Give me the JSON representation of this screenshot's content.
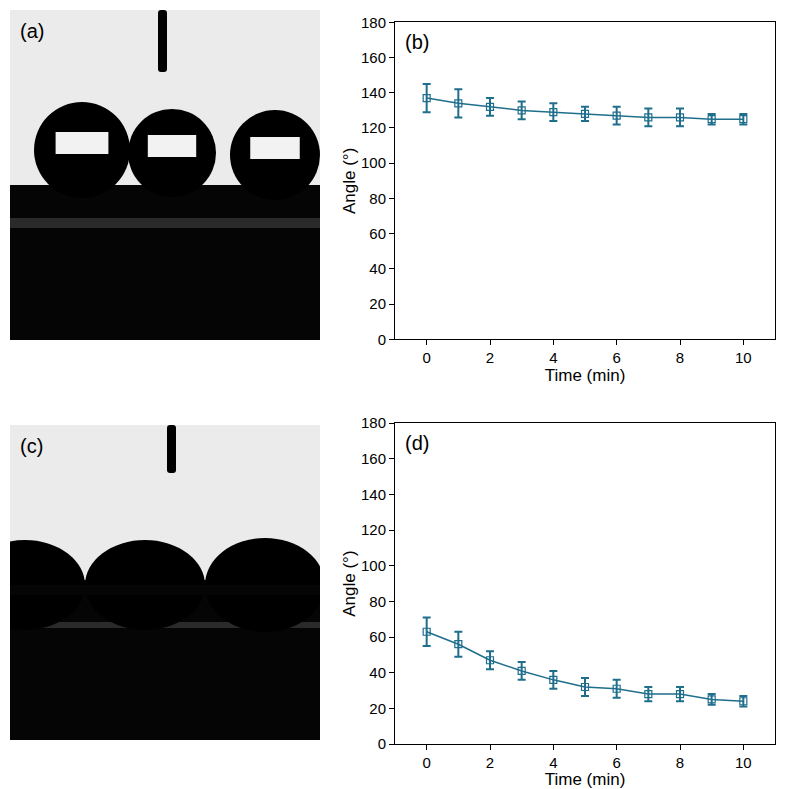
{
  "chart_data": [
    {
      "type": "line",
      "annotations": [
        "(b)"
      ],
      "x": [
        0,
        1,
        2,
        3,
        4,
        5,
        6,
        7,
        8,
        9,
        10
      ],
      "values": [
        137,
        134,
        132,
        130,
        129,
        128,
        127,
        126,
        126,
        125,
        125
      ],
      "errors": [
        8,
        8,
        5,
        5,
        5,
        4,
        5,
        5,
        5,
        3,
        3
      ],
      "color": "#1f6e8c",
      "marker": "square-open",
      "line_style": "solid",
      "x_label": "Time (min)",
      "y_label": "Angle (°)",
      "xlim": [
        -1,
        11
      ],
      "xticks": [
        0,
        2,
        4,
        6,
        8,
        10
      ],
      "ylim": [
        0,
        180
      ],
      "yticks": [
        0,
        20,
        40,
        60,
        80,
        100,
        120,
        140,
        160,
        180
      ],
      "grid": false
    },
    {
      "type": "line",
      "annotations": [
        "(d)"
      ],
      "x": [
        0,
        1,
        2,
        3,
        4,
        5,
        6,
        7,
        8,
        9,
        10
      ],
      "values": [
        63,
        56,
        47,
        41,
        36,
        32,
        31,
        28,
        28,
        25,
        24
      ],
      "errors": [
        8,
        7,
        5,
        5,
        5,
        5,
        5,
        4,
        4,
        3,
        3
      ],
      "color": "#1f6e8c",
      "marker": "square-open",
      "line_style": "solid",
      "x_label": "Time (min)",
      "y_label": "Angle (°)",
      "xlim": [
        -1,
        11
      ],
      "xticks": [
        0,
        2,
        4,
        6,
        8,
        10
      ],
      "ylim": [
        0,
        180
      ],
      "yticks": [
        0,
        20,
        40,
        60,
        80,
        100,
        120,
        140,
        160,
        180
      ],
      "grid": false
    }
  ],
  "photos": [
    {
      "label": "(a)"
    },
    {
      "label": "(c)"
    }
  ]
}
